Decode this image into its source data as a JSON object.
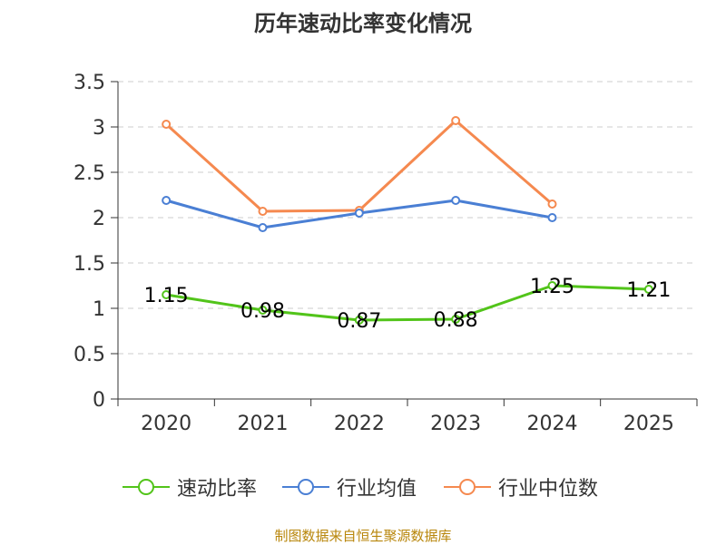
{
  "colors": {
    "speed_ratio": "#52c41a",
    "industry_avg": "#4a7fd4",
    "industry_median": "#f5894f",
    "grid": "#cccccc",
    "axis": "#333333",
    "source": "#b8860b"
  },
  "chart_data": {
    "type": "line",
    "title": "历年速动比率变化情况",
    "categories": [
      "2020",
      "2021",
      "2022",
      "2023",
      "2024",
      "2025"
    ],
    "y_ticks": [
      "0",
      "0.5",
      "1",
      "1.5",
      "2",
      "2.5",
      "3",
      "3.5"
    ],
    "ylim": [
      0,
      3.5
    ],
    "grid": true,
    "legend_position": "bottom",
    "series": [
      {
        "name": "速动比率",
        "values": [
          1.15,
          0.98,
          0.87,
          0.88,
          1.25,
          1.21
        ],
        "labels": [
          "1.15",
          "0.98",
          "0.87",
          "0.88",
          "1.25",
          "1.21"
        ],
        "color_key": "speed_ratio"
      },
      {
        "name": "行业均值",
        "values": [
          2.19,
          1.89,
          2.05,
          2.19,
          2.0,
          null
        ],
        "color_key": "industry_avg"
      },
      {
        "name": "行业中位数",
        "values": [
          3.03,
          2.07,
          2.08,
          3.07,
          2.15,
          null
        ],
        "color_key": "industry_median"
      }
    ]
  },
  "source": "制图数据来自恒生聚源数据库"
}
